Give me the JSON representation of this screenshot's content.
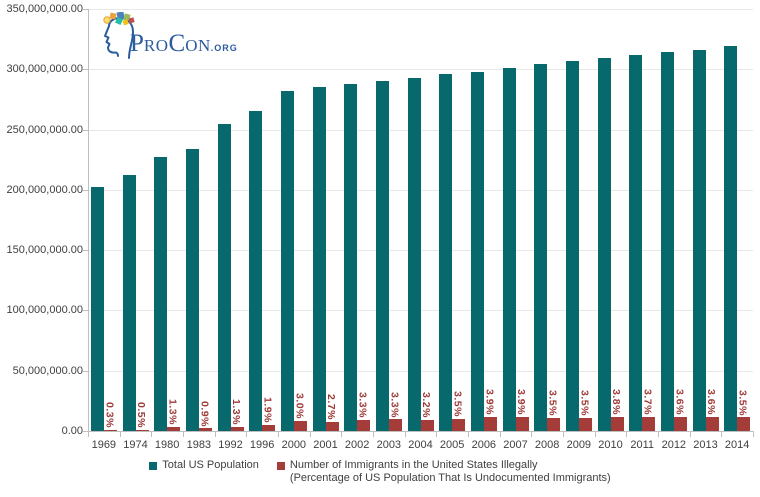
{
  "logo": {
    "p": "P",
    "ro": "RO",
    "c": "C",
    "on": "ON",
    "org": ".ORG"
  },
  "legend": {
    "item1": "Total US Population",
    "item2_line1": "Number of Immigrants in the United States Illegally",
    "item2_line2": "(Percentage of US Population That Is Undocumented Immigrants)"
  },
  "colors": {
    "total_population_bar": "#07696c",
    "immigrants_bar": "#a43c39",
    "pct_label": "#9e3b39",
    "axis_text": "#404040",
    "gridline": "#e8e8e8",
    "axis_line": "#bfbfbf",
    "logo_blue": "#2b5c9e"
  },
  "chart_data": {
    "type": "bar",
    "title": "",
    "xlabel": "",
    "ylabel": "",
    "categories": [
      "1969",
      "1974",
      "1980",
      "1983",
      "1992",
      "1996",
      "2000",
      "2001",
      "2002",
      "2003",
      "2004",
      "2005",
      "2006",
      "2007",
      "2008",
      "2009",
      "2010",
      "2011",
      "2012",
      "2013",
      "2014"
    ],
    "series": [
      {
        "name": "Total US Population",
        "color": "#07696c",
        "values": [
          202000000,
          212000000,
          227000000,
          234000000,
          255000000,
          265000000,
          282000000,
          285000000,
          288000000,
          290000000,
          293000000,
          296000000,
          298000000,
          301000000,
          304000000,
          307000000,
          309000000,
          312000000,
          314000000,
          316000000,
          319000000
        ]
      },
      {
        "name": "Number of Immigrants in the United States Illegally (Percentage of US Population That Is Undocumented Immigrants)",
        "color": "#a43c39",
        "values": [
          600000,
          1100000,
          3000000,
          2100000,
          3300000,
          5000000,
          8500000,
          7700000,
          9500000,
          9600000,
          9400000,
          10300000,
          11600000,
          11800000,
          10600000,
          10700000,
          11700000,
          11500000,
          11300000,
          11400000,
          11200000
        ],
        "labels": [
          "0.3%",
          "0.5%",
          "1.3%",
          "0.9%",
          "1.3%",
          "1.9%",
          "3.0%",
          "2.7%",
          "3.3%",
          "3.3%",
          "3.2%",
          "3.5%",
          "3.9%",
          "3.9%",
          "3.5%",
          "3.5%",
          "3.8%",
          "3.7%",
          "3.6%",
          "3.6%",
          "3.5%"
        ]
      }
    ],
    "ylim": [
      0,
      350000000
    ],
    "y_ticks": [
      "350,000,000.00",
      "300,000,000.00",
      "250,000,000.00",
      "200,000,000.00",
      "150,000,000.00",
      "100,000,000.00",
      "50,000,000.00",
      "0.00"
    ],
    "grid": true,
    "legend_position": "bottom"
  }
}
